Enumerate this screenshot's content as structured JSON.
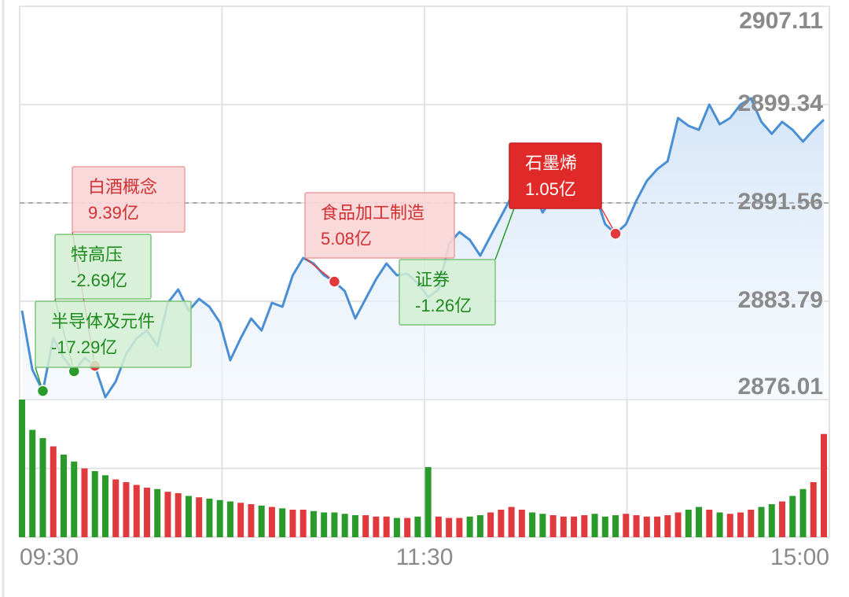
{
  "chart_data": {
    "type": "line",
    "values": [
      2883.04,
      2878.37,
      2876.69,
      2880.86,
      2879.31,
      2878.25,
      2879.31,
      2878.68,
      2876.2,
      2877.44,
      2879.62,
      2880.86,
      2881.48,
      2880.24,
      2883.66,
      2884.72,
      2883.04,
      2883.97,
      2883.35,
      2882.11,
      2879.12,
      2880.86,
      2882.42,
      2881.48,
      2883.66,
      2883.35,
      2885.84,
      2887.21,
      2886.77,
      2885.84,
      2885.34,
      2884.59,
      2882.42,
      2883.97,
      2885.53,
      2886.77,
      2885.84,
      2885.96,
      2885.22,
      2884.1,
      2884.72,
      2888.33,
      2889.26,
      2888.64,
      2887.39,
      2888.95,
      2890.5,
      2892.06,
      2892.8,
      2892.68,
      2890.81,
      2892.06,
      2892.37,
      2892.68,
      2892.8,
      2892.37,
      2889.88,
      2889.13,
      2889.88,
      2891.75,
      2893.3,
      2894.23,
      2894.86,
      2898.28,
      2897.66,
      2897.34,
      2899.34,
      2897.78,
      2898.28,
      2899.34,
      2899.83,
      2897.97,
      2897.03,
      2897.97,
      2897.34,
      2896.41,
      2897.34,
      2898.15
    ],
    "color": "#4a8fd4",
    "ylim": [
      2876.01,
      2907.11
    ],
    "yticks": [
      2876.01,
      2883.79,
      2891.56,
      2899.34,
      2907.11
    ],
    "prev_close": 2891.56,
    "x_tick_labels": [
      "09:30",
      "11:30",
      "15:00"
    ],
    "grid": true,
    "up_color": "#e0393e",
    "down_color": "#2a9a2a",
    "volume": {
      "values": [
        100,
        78,
        72,
        66,
        60,
        55,
        50,
        48,
        45,
        42,
        40,
        38,
        36,
        35,
        33,
        32,
        30,
        29,
        28,
        27,
        26,
        25,
        24,
        23,
        22,
        21,
        20,
        20,
        19,
        18,
        18,
        17,
        16,
        16,
        15,
        15,
        14,
        14,
        15,
        51,
        15,
        14,
        14,
        15,
        16,
        18,
        20,
        22,
        20,
        18,
        17,
        16,
        15,
        15,
        16,
        17,
        15,
        16,
        17,
        16,
        15,
        15,
        16,
        18,
        20,
        22,
        20,
        18,
        17,
        18,
        20,
        22,
        24,
        26,
        30,
        35,
        40,
        75
      ],
      "ylim": [
        0,
        100
      ],
      "yticks": [
        0,
        50,
        100
      ]
    },
    "annotations": [
      {
        "name": "白酒概念",
        "value": 9.39,
        "value_label": "9.39亿",
        "highlight": false
      },
      {
        "name": "特高压",
        "value": -2.69,
        "value_label": "-2.69亿",
        "highlight": false
      },
      {
        "name": "半导体及元件",
        "value": -17.29,
        "value_label": "-17.29亿",
        "highlight": false
      },
      {
        "name": "食品加工制造",
        "value": 5.08,
        "value_label": "5.08亿",
        "highlight": false
      },
      {
        "name": "证券",
        "value": -1.26,
        "value_label": "-1.26亿",
        "highlight": false
      },
      {
        "name": "石墨烯",
        "value": 1.05,
        "value_label": "1.05亿",
        "highlight": true
      }
    ]
  }
}
